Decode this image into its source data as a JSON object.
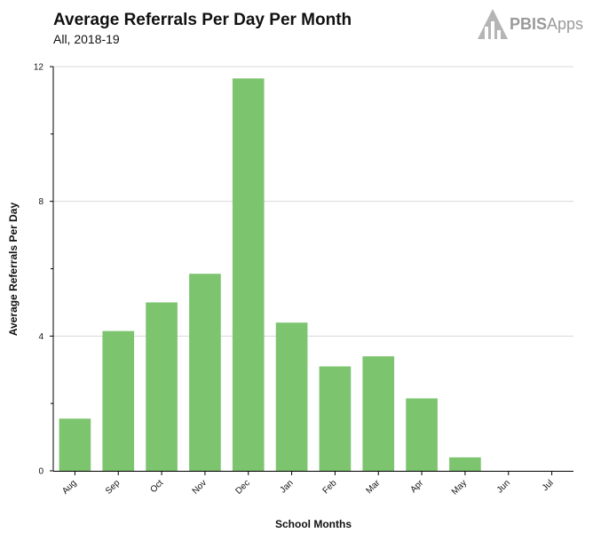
{
  "header": {
    "title": "Average Referrals Per Day Per Month",
    "subtitle": "All, 2018-19"
  },
  "logo": {
    "brand_bold": "PBIS",
    "brand_light": "Apps",
    "icon": "pbisapps-logo-icon",
    "color": "#a0a0a0"
  },
  "colors": {
    "bar": "#7dc46e",
    "grid": "#d8d8d8",
    "axis": "#000000"
  },
  "chart_data": {
    "type": "bar",
    "title": "Average Referrals Per Day Per Month",
    "subtitle": "All, 2018-19",
    "xlabel": "School Months",
    "ylabel": "Average Referrals Per Day",
    "categories": [
      "Aug",
      "Sep",
      "Oct",
      "Nov",
      "Dec",
      "Jan",
      "Feb",
      "Mar",
      "Apr",
      "May",
      "Jun",
      "Jul"
    ],
    "values": [
      1.55,
      4.15,
      5.0,
      5.85,
      11.65,
      4.4,
      3.1,
      3.4,
      2.15,
      0.4,
      0,
      0
    ],
    "ylim": [
      0,
      12
    ],
    "yticks": [
      "0",
      "4",
      "8",
      "12"
    ],
    "grid": true,
    "legend": "none"
  }
}
